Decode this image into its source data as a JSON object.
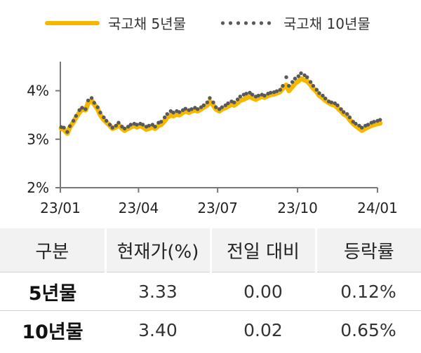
{
  "legend": {
    "series1": "국고채 5년물",
    "series2": "국고채 10년물"
  },
  "colors": {
    "five_year": "#F5B800",
    "ten_year": "#595959"
  },
  "chart_data": {
    "type": "line",
    "title": "",
    "xlabel": "",
    "ylabel": "",
    "x_ticks": [
      "23/01",
      "23/04",
      "23/07",
      "23/10",
      "24/01"
    ],
    "y_ticks": [
      "2%",
      "3%",
      "4%"
    ],
    "ylim": [
      2,
      4.6
    ],
    "grid": false,
    "legend_position": "top",
    "series": [
      {
        "name": "국고채 5년물",
        "style": "solid",
        "points": [
          [
            "2023-01-02",
            3.22
          ],
          [
            "2023-01-05",
            3.2
          ],
          [
            "2023-01-09",
            3.12
          ],
          [
            "2023-01-12",
            3.25
          ],
          [
            "2023-01-16",
            3.35
          ],
          [
            "2023-01-19",
            3.45
          ],
          [
            "2023-01-23",
            3.55
          ],
          [
            "2023-01-26",
            3.62
          ],
          [
            "2023-01-30",
            3.6
          ],
          [
            "2023-02-02",
            3.75
          ],
          [
            "2023-02-06",
            3.8
          ],
          [
            "2023-02-09",
            3.72
          ],
          [
            "2023-02-13",
            3.62
          ],
          [
            "2023-02-16",
            3.5
          ],
          [
            "2023-02-20",
            3.4
          ],
          [
            "2023-02-23",
            3.35
          ],
          [
            "2023-02-27",
            3.28
          ],
          [
            "2023-03-02",
            3.22
          ],
          [
            "2023-03-06",
            3.25
          ],
          [
            "2023-03-09",
            3.3
          ],
          [
            "2023-03-13",
            3.22
          ],
          [
            "2023-03-16",
            3.18
          ],
          [
            "2023-03-20",
            3.22
          ],
          [
            "2023-03-23",
            3.25
          ],
          [
            "2023-03-27",
            3.28
          ],
          [
            "2023-03-30",
            3.25
          ],
          [
            "2023-04-03",
            3.28
          ],
          [
            "2023-04-06",
            3.25
          ],
          [
            "2023-04-10",
            3.2
          ],
          [
            "2023-04-13",
            3.22
          ],
          [
            "2023-04-17",
            3.25
          ],
          [
            "2023-04-20",
            3.22
          ],
          [
            "2023-04-24",
            3.28
          ],
          [
            "2023-04-27",
            3.3
          ],
          [
            "2023-05-01",
            3.38
          ],
          [
            "2023-05-04",
            3.45
          ],
          [
            "2023-05-08",
            3.5
          ],
          [
            "2023-05-11",
            3.48
          ],
          [
            "2023-05-15",
            3.52
          ],
          [
            "2023-05-18",
            3.5
          ],
          [
            "2023-05-22",
            3.55
          ],
          [
            "2023-05-25",
            3.58
          ],
          [
            "2023-05-29",
            3.55
          ],
          [
            "2023-06-01",
            3.58
          ],
          [
            "2023-06-05",
            3.6
          ],
          [
            "2023-06-08",
            3.58
          ],
          [
            "2023-06-12",
            3.62
          ],
          [
            "2023-06-15",
            3.66
          ],
          [
            "2023-06-19",
            3.7
          ],
          [
            "2023-06-22",
            3.78
          ],
          [
            "2023-06-26",
            3.7
          ],
          [
            "2023-06-29",
            3.62
          ],
          [
            "2023-07-03",
            3.58
          ],
          [
            "2023-07-06",
            3.62
          ],
          [
            "2023-07-10",
            3.65
          ],
          [
            "2023-07-13",
            3.68
          ],
          [
            "2023-07-17",
            3.72
          ],
          [
            "2023-07-20",
            3.7
          ],
          [
            "2023-07-24",
            3.75
          ],
          [
            "2023-07-27",
            3.8
          ],
          [
            "2023-07-31",
            3.82
          ],
          [
            "2023-08-03",
            3.85
          ],
          [
            "2023-08-07",
            3.88
          ],
          [
            "2023-08-10",
            3.85
          ],
          [
            "2023-08-14",
            3.82
          ],
          [
            "2023-08-17",
            3.85
          ],
          [
            "2023-08-21",
            3.88
          ],
          [
            "2023-08-24",
            3.86
          ],
          [
            "2023-08-28",
            3.9
          ],
          [
            "2023-08-31",
            3.92
          ],
          [
            "2023-09-04",
            3.93
          ],
          [
            "2023-09-07",
            3.95
          ],
          [
            "2023-09-11",
            3.98
          ],
          [
            "2023-09-14",
            4.05
          ],
          [
            "2023-09-18",
            4.12
          ],
          [
            "2023-09-21",
            4.0
          ],
          [
            "2023-09-25",
            4.08
          ],
          [
            "2023-09-28",
            4.15
          ],
          [
            "2023-10-02",
            4.2
          ],
          [
            "2023-10-05",
            4.25
          ],
          [
            "2023-10-09",
            4.22
          ],
          [
            "2023-10-12",
            4.2
          ],
          [
            "2023-10-16",
            4.12
          ],
          [
            "2023-10-19",
            4.05
          ],
          [
            "2023-10-23",
            3.98
          ],
          [
            "2023-10-26",
            3.9
          ],
          [
            "2023-10-30",
            3.85
          ],
          [
            "2023-11-02",
            3.8
          ],
          [
            "2023-11-06",
            3.75
          ],
          [
            "2023-11-09",
            3.72
          ],
          [
            "2023-11-13",
            3.7
          ],
          [
            "2023-11-16",
            3.65
          ],
          [
            "2023-11-20",
            3.58
          ],
          [
            "2023-11-23",
            3.52
          ],
          [
            "2023-11-27",
            3.48
          ],
          [
            "2023-11-30",
            3.4
          ],
          [
            "2023-12-04",
            3.32
          ],
          [
            "2023-12-07",
            3.28
          ],
          [
            "2023-12-11",
            3.22
          ],
          [
            "2023-12-14",
            3.18
          ],
          [
            "2023-12-18",
            3.22
          ],
          [
            "2023-12-21",
            3.25
          ],
          [
            "2023-12-25",
            3.28
          ],
          [
            "2023-12-28",
            3.3
          ],
          [
            "2024-01-01",
            3.32
          ],
          [
            "2024-01-04",
            3.33
          ]
        ]
      },
      {
        "name": "국고채 10년물",
        "style": "dotted",
        "points": [
          [
            "2023-01-02",
            3.25
          ],
          [
            "2023-01-05",
            3.24
          ],
          [
            "2023-01-09",
            3.15
          ],
          [
            "2023-01-12",
            3.27
          ],
          [
            "2023-01-16",
            3.38
          ],
          [
            "2023-01-19",
            3.48
          ],
          [
            "2023-01-23",
            3.6
          ],
          [
            "2023-01-26",
            3.65
          ],
          [
            "2023-01-30",
            3.62
          ],
          [
            "2023-02-02",
            3.8
          ],
          [
            "2023-02-06",
            3.85
          ],
          [
            "2023-02-09",
            3.75
          ],
          [
            "2023-02-13",
            3.66
          ],
          [
            "2023-02-16",
            3.55
          ],
          [
            "2023-02-20",
            3.45
          ],
          [
            "2023-02-23",
            3.38
          ],
          [
            "2023-02-27",
            3.3
          ],
          [
            "2023-03-02",
            3.24
          ],
          [
            "2023-03-06",
            3.28
          ],
          [
            "2023-03-09",
            3.34
          ],
          [
            "2023-03-13",
            3.26
          ],
          [
            "2023-03-16",
            3.22
          ],
          [
            "2023-03-20",
            3.26
          ],
          [
            "2023-03-23",
            3.3
          ],
          [
            "2023-03-27",
            3.32
          ],
          [
            "2023-03-30",
            3.3
          ],
          [
            "2023-04-03",
            3.32
          ],
          [
            "2023-04-06",
            3.3
          ],
          [
            "2023-04-10",
            3.26
          ],
          [
            "2023-04-13",
            3.28
          ],
          [
            "2023-04-17",
            3.3
          ],
          [
            "2023-04-20",
            3.26
          ],
          [
            "2023-04-24",
            3.34
          ],
          [
            "2023-04-27",
            3.36
          ],
          [
            "2023-05-01",
            3.45
          ],
          [
            "2023-05-04",
            3.52
          ],
          [
            "2023-05-08",
            3.58
          ],
          [
            "2023-05-11",
            3.55
          ],
          [
            "2023-05-15",
            3.58
          ],
          [
            "2023-05-18",
            3.56
          ],
          [
            "2023-05-22",
            3.6
          ],
          [
            "2023-05-25",
            3.63
          ],
          [
            "2023-05-29",
            3.6
          ],
          [
            "2023-06-01",
            3.62
          ],
          [
            "2023-06-05",
            3.65
          ],
          [
            "2023-06-08",
            3.62
          ],
          [
            "2023-06-12",
            3.66
          ],
          [
            "2023-06-15",
            3.7
          ],
          [
            "2023-06-19",
            3.76
          ],
          [
            "2023-06-22",
            3.85
          ],
          [
            "2023-06-26",
            3.76
          ],
          [
            "2023-06-29",
            3.66
          ],
          [
            "2023-07-03",
            3.62
          ],
          [
            "2023-07-06",
            3.66
          ],
          [
            "2023-07-10",
            3.7
          ],
          [
            "2023-07-13",
            3.74
          ],
          [
            "2023-07-17",
            3.78
          ],
          [
            "2023-07-20",
            3.76
          ],
          [
            "2023-07-24",
            3.82
          ],
          [
            "2023-07-27",
            3.88
          ],
          [
            "2023-07-31",
            3.92
          ],
          [
            "2023-08-03",
            3.94
          ],
          [
            "2023-08-07",
            3.96
          ],
          [
            "2023-08-10",
            3.92
          ],
          [
            "2023-08-14",
            3.88
          ],
          [
            "2023-08-17",
            3.9
          ],
          [
            "2023-08-21",
            3.92
          ],
          [
            "2023-08-24",
            3.9
          ],
          [
            "2023-08-28",
            3.94
          ],
          [
            "2023-08-31",
            3.96
          ],
          [
            "2023-09-04",
            3.97
          ],
          [
            "2023-09-07",
            3.99
          ],
          [
            "2023-09-11",
            4.02
          ],
          [
            "2023-09-14",
            4.1
          ],
          [
            "2023-09-18",
            4.28
          ],
          [
            "2023-09-21",
            4.1
          ],
          [
            "2023-09-25",
            4.18
          ],
          [
            "2023-09-28",
            4.25
          ],
          [
            "2023-10-02",
            4.3
          ],
          [
            "2023-10-05",
            4.36
          ],
          [
            "2023-10-09",
            4.32
          ],
          [
            "2023-10-12",
            4.28
          ],
          [
            "2023-10-16",
            4.18
          ],
          [
            "2023-10-19",
            4.1
          ],
          [
            "2023-10-23",
            4.02
          ],
          [
            "2023-10-26",
            3.95
          ],
          [
            "2023-10-30",
            3.9
          ],
          [
            "2023-11-02",
            3.84
          ],
          [
            "2023-11-06",
            3.78
          ],
          [
            "2023-11-09",
            3.76
          ],
          [
            "2023-11-13",
            3.74
          ],
          [
            "2023-11-16",
            3.7
          ],
          [
            "2023-11-20",
            3.62
          ],
          [
            "2023-11-23",
            3.56
          ],
          [
            "2023-11-27",
            3.52
          ],
          [
            "2023-11-30",
            3.45
          ],
          [
            "2023-12-04",
            3.36
          ],
          [
            "2023-12-07",
            3.32
          ],
          [
            "2023-12-11",
            3.28
          ],
          [
            "2023-12-14",
            3.24
          ],
          [
            "2023-12-18",
            3.28
          ],
          [
            "2023-12-21",
            3.3
          ],
          [
            "2023-12-25",
            3.34
          ],
          [
            "2023-12-28",
            3.36
          ],
          [
            "2024-01-01",
            3.38
          ],
          [
            "2024-01-04",
            3.4
          ]
        ]
      }
    ]
  },
  "table": {
    "headers": [
      "구분",
      "현재가(%)",
      "전일 대비",
      "등락률"
    ],
    "rows": [
      [
        "5년물",
        "3.33",
        "0.00",
        "0.12%"
      ],
      [
        "10년물",
        "3.40",
        "0.02",
        "0.65%"
      ]
    ]
  }
}
